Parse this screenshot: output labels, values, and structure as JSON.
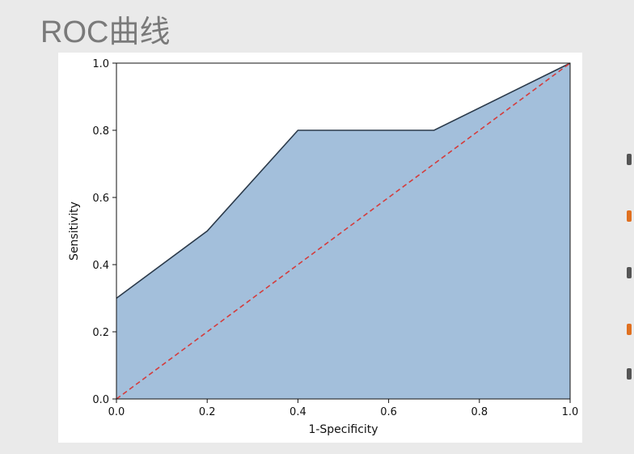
{
  "slide": {
    "title": "ROC曲线"
  },
  "chart_data": {
    "type": "area",
    "title": "",
    "xlabel": "1-Specificity",
    "ylabel": "Sensitivity",
    "xlim": [
      0.0,
      1.0
    ],
    "ylim": [
      0.0,
      1.0
    ],
    "xticks": [
      "0.0",
      "0.2",
      "0.4",
      "0.6",
      "0.8",
      "1.0"
    ],
    "yticks": [
      "0.0",
      "0.2",
      "0.4",
      "0.6",
      "0.8",
      "1.0"
    ],
    "grid": false,
    "legend": "none",
    "series": [
      {
        "x": [
          0.0,
          0.2,
          0.4,
          0.7,
          1.0
        ],
        "y": [
          0.3,
          0.5,
          0.8,
          0.8,
          1.0
        ],
        "style": "solid",
        "line_color": "#2b3a4a",
        "fill_color": "#a3bfdb"
      },
      {
        "x": [
          0.0,
          1.0
        ],
        "y": [
          0.0,
          1.0
        ],
        "style": "dashed",
        "line_color": "#d43c3c"
      }
    ]
  },
  "colors": {
    "background": "#eaeaea",
    "title": "#7a7a7a",
    "fragments": [
      "#555555",
      "#e07020",
      "#555555",
      "#e07020",
      "#555555"
    ]
  }
}
